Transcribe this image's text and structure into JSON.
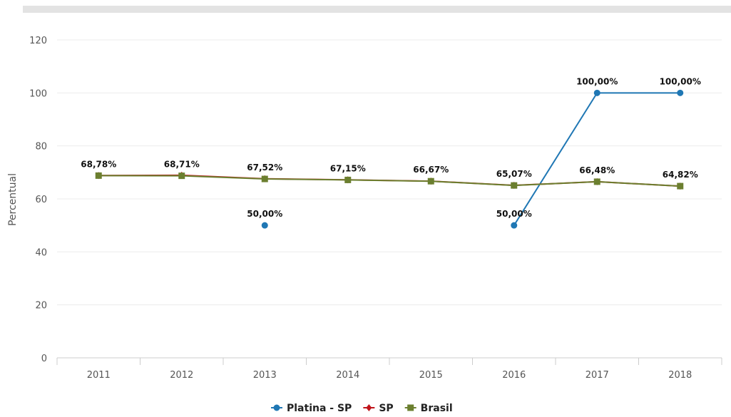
{
  "chart_data": {
    "type": "line",
    "xlabel": "",
    "ylabel": "Percentual",
    "ylim": [
      0,
      120
    ],
    "yticks": [
      0,
      20,
      40,
      60,
      80,
      100,
      120
    ],
    "categories": [
      "2011",
      "2012",
      "2013",
      "2014",
      "2015",
      "2016",
      "2017",
      "2018"
    ],
    "grid": true,
    "legend_position": "bottom",
    "series": [
      {
        "name": "Platina - SP",
        "color": "#1f77b4",
        "marker": "circle",
        "values": [
          null,
          null,
          50.0,
          null,
          null,
          50.0,
          100.0,
          100.0
        ],
        "labels": [
          null,
          null,
          "50,00%",
          null,
          null,
          "50,00%",
          "100,00%",
          "100,00%"
        ]
      },
      {
        "name": "SP",
        "color": "#c0141b",
        "marker": "diamond",
        "values": [
          68.8,
          68.9,
          67.6,
          67.2,
          66.7,
          65.1,
          66.5,
          64.8
        ],
        "labels": []
      },
      {
        "name": "Brasil",
        "color": "#6b7f2f",
        "marker": "square",
        "values": [
          68.78,
          68.71,
          67.52,
          67.15,
          66.67,
          65.07,
          66.48,
          64.82
        ],
        "labels": [
          "68,78%",
          "68,71%",
          "67,52%",
          "67,15%",
          "66,67%",
          "65,07%",
          "66,48%",
          "64,82%"
        ]
      }
    ]
  }
}
